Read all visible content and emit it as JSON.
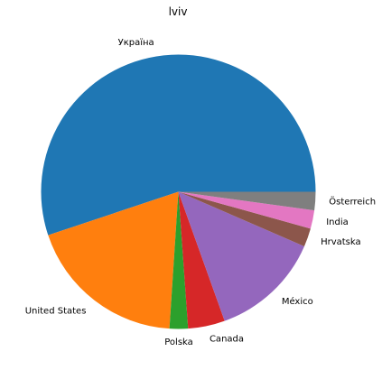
{
  "chart_data": {
    "type": "pie",
    "title": "lviv",
    "start_angle_deg": 0,
    "direction": "counterclockwise",
    "slices": [
      {
        "label": "Україна",
        "value": 55.9,
        "color": "#1f77b4"
      },
      {
        "label": "United States",
        "value": 19.1,
        "color": "#ff7f0e"
      },
      {
        "label": "Polska",
        "value": 2.2,
        "color": "#2ca02c"
      },
      {
        "label": "Canada",
        "value": 4.4,
        "color": "#d62728"
      },
      {
        "label": "México",
        "value": 13.2,
        "color": "#9467bd"
      },
      {
        "label": "Hrvatska",
        "value": 2.2,
        "color": "#8c564b"
      },
      {
        "label": "India",
        "value": 2.2,
        "color": "#e377c2"
      },
      {
        "label": "Österreich",
        "value": 2.2,
        "color": "#7f7f7f"
      }
    ]
  }
}
